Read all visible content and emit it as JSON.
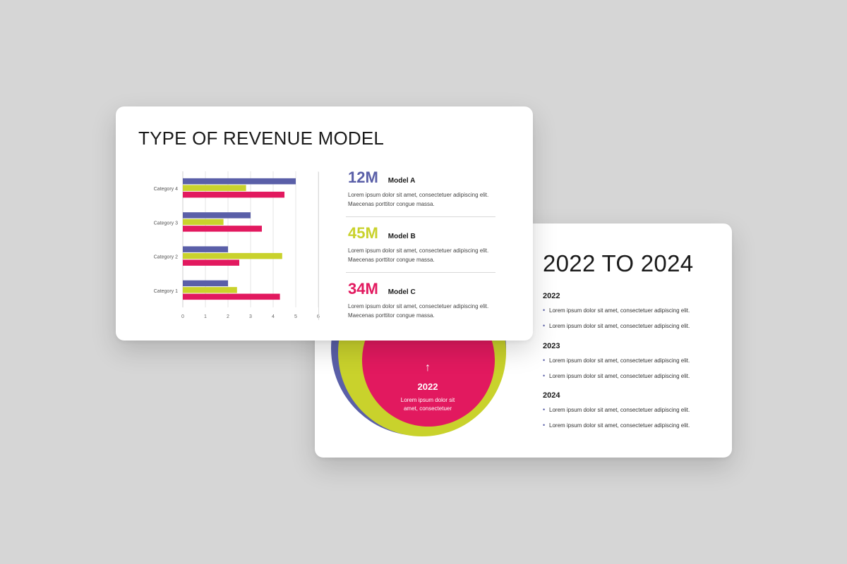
{
  "colors": {
    "blue": "#5a5fa8",
    "lime": "#c9d22c",
    "pink": "#e2195f",
    "background": "#d6d6d6"
  },
  "back_slide": {
    "title": "2022 TO 2024",
    "years": [
      {
        "year": "2022",
        "bullets": [
          "Lorem ipsum dolor sit amet, consectetuer adipiscing elit.",
          "Lorem ipsum dolor sit amet, consectetuer adipiscing elit."
        ]
      },
      {
        "year": "2023",
        "bullets": [
          "Lorem ipsum dolor sit amet, consectetuer adipiscing elit.",
          "Lorem ipsum dolor sit amet, consectetuer adipiscing elit."
        ]
      },
      {
        "year": "2024",
        "bullets": [
          "Lorem ipsum dolor sit amet, consectetuer adipiscing elit.",
          "Lorem ipsum dolor sit amet, consectetuer adipiscing elit."
        ]
      }
    ],
    "circle": {
      "arrow": "↑",
      "year": "2022",
      "desc_line1": "Lorem ipsum dolor sit",
      "desc_line2": "amet, consectetuer"
    },
    "bullet_symbol": "•"
  },
  "front_slide": {
    "title": "TYPE OF REVENUE MODEL",
    "models": [
      {
        "value": "12M",
        "name": "Model A",
        "desc_line1": "Lorem ipsum dolor sit amet, consectetuer adipiscing elit.",
        "desc_line2": "Maecenas porttitor congue massa.",
        "color": "#5a5fa8"
      },
      {
        "value": "45M",
        "name": "Model B",
        "desc_line1": "Lorem ipsum dolor sit amet, consectetuer adipiscing elit.",
        "desc_line2": "Maecenas porttitor congue massa.",
        "color": "#c9d22c"
      },
      {
        "value": "34M",
        "name": "Model C",
        "desc_line1": "Lorem ipsum dolor sit amet, consectetuer adipiscing elit.",
        "desc_line2": "Maecenas porttitor congue massa.",
        "color": "#e2195f"
      }
    ]
  },
  "chart_data": {
    "type": "bar",
    "orientation": "horizontal",
    "categories": [
      "Category 1",
      "Category 2",
      "Category 3",
      "Category 4"
    ],
    "series": [
      {
        "values": [
          2,
          2,
          3,
          5
        ],
        "color": "#5a5fa8"
      },
      {
        "values": [
          2.4,
          4.4,
          1.8,
          2.8
        ],
        "color": "#c9d22c"
      },
      {
        "values": [
          4.3,
          2.5,
          3.5,
          4.5
        ],
        "color": "#e2195f"
      }
    ],
    "xlim": [
      0,
      6
    ],
    "xticks": [
      "0",
      "1",
      "2",
      "3",
      "4",
      "5",
      "6"
    ],
    "grid": true
  }
}
